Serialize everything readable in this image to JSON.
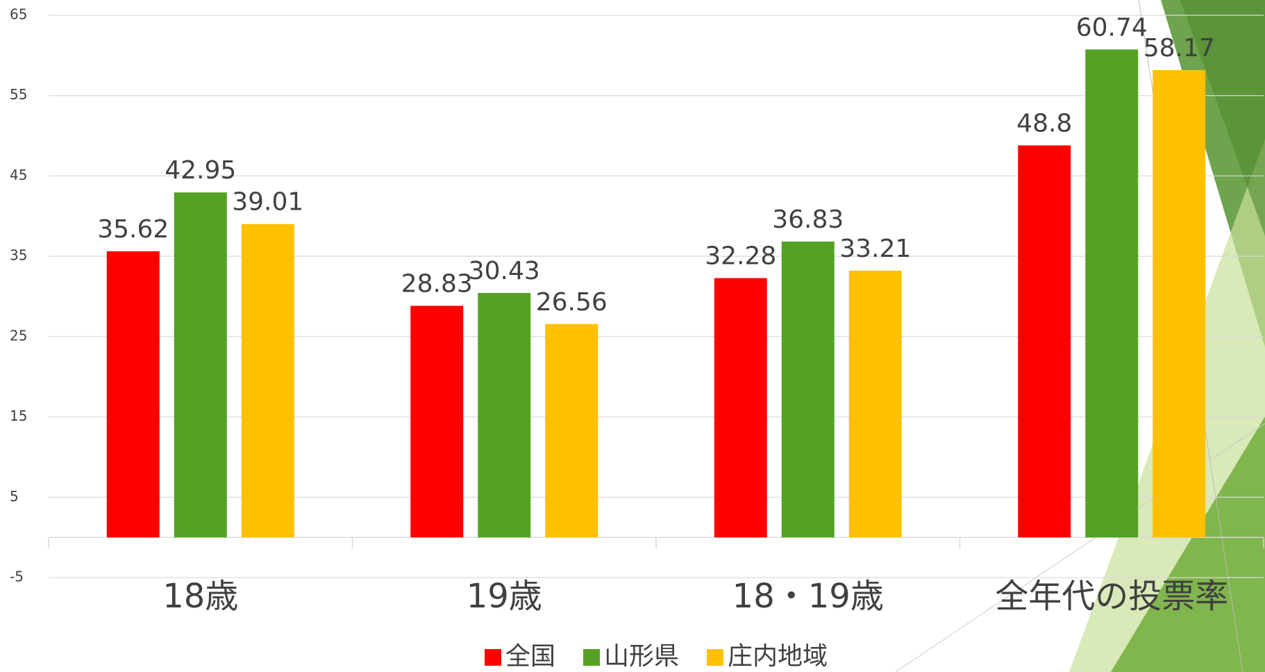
{
  "chart_data": {
    "type": "bar",
    "categories": [
      "18歳",
      "19歳",
      "18・19歳",
      "全年代の投票率"
    ],
    "series": [
      {
        "name": "全国",
        "color": "#ff0000",
        "values": [
          35.62,
          28.83,
          32.28,
          48.8
        ]
      },
      {
        "name": "山形県",
        "color": "#55a125",
        "values": [
          42.95,
          30.43,
          36.83,
          60.74
        ]
      },
      {
        "name": "庄内地域",
        "color": "#ffc000",
        "values": [
          39.01,
          26.56,
          33.21,
          58.17
        ]
      }
    ],
    "ylim": [
      -5,
      65
    ],
    "yticks": [
      -5,
      5,
      15,
      25,
      35,
      45,
      55,
      65
    ],
    "grid": true,
    "legend": "bottom"
  }
}
